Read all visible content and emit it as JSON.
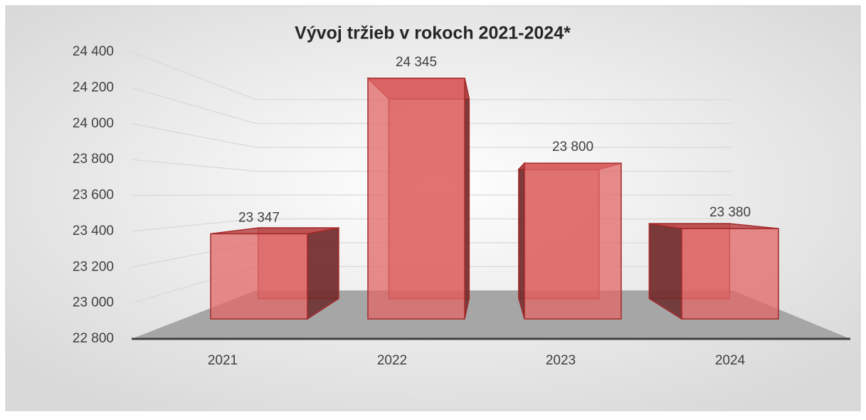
{
  "chart_data": {
    "type": "bar3d",
    "title": "Vývoj tržieb v rokoch 2021-2024*",
    "categories": [
      "2021",
      "2022",
      "2023",
      "2024"
    ],
    "values": [
      23347,
      24345,
      23800,
      23380
    ],
    "value_labels": [
      "23 347",
      "24 345",
      "23 800",
      "23 380"
    ],
    "color": "#e06666",
    "ylim": [
      22800,
      24400
    ],
    "yticks": [
      {
        "value": 22800,
        "label": "22 800"
      },
      {
        "value": 23000,
        "label": "23 000"
      },
      {
        "value": 23200,
        "label": "23 200"
      },
      {
        "value": 23400,
        "label": "23 400"
      },
      {
        "value": 23600,
        "label": "23 600"
      },
      {
        "value": 23800,
        "label": "23 800"
      },
      {
        "value": 24000,
        "label": "24 000"
      },
      {
        "value": 24200,
        "label": "24 200"
      },
      {
        "value": 24400,
        "label": "24 400"
      }
    ],
    "grid": true
  }
}
